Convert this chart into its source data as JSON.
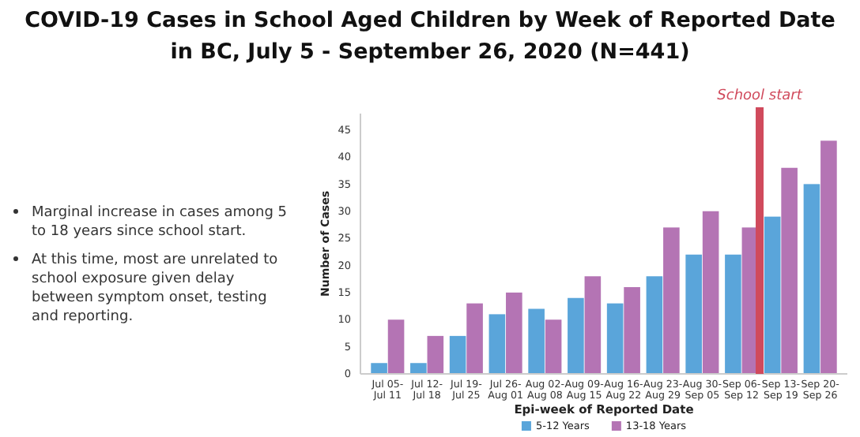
{
  "chart_data": {
    "type": "bar",
    "title": "COVID-19 Cases in School Aged Children by Week of Reported Date in BC, July 5 - September 26, 2020 (N=441)",
    "xlabel": "Epi-week of Reported Date",
    "ylabel": "Number of Cases",
    "categories": [
      "Jul 05- Jul 11",
      "Jul 12- Jul 18",
      "Jul 19- Jul 25",
      "Jul 26- Aug 01",
      "Aug 02- Aug 08",
      "Aug 09- Aug 15",
      "Aug 16- Aug 22",
      "Aug 23- Aug 29",
      "Aug 30- Sep 05",
      "Sep 06- Sep 12",
      "Sep 13- Sep 19",
      "Sep 20- Sep 26"
    ],
    "series": [
      {
        "name": "5-12 Years",
        "color": "#5aa5da",
        "values": [
          2,
          2,
          7,
          11,
          12,
          14,
          13,
          18,
          22,
          22,
          29,
          35
        ]
      },
      {
        "name": "13-18 Years",
        "color": "#b474b4",
        "values": [
          10,
          7,
          13,
          15,
          10,
          18,
          16,
          27,
          30,
          27,
          38,
          43
        ]
      }
    ],
    "ylim": [
      0,
      48
    ],
    "yticks": [
      0,
      5,
      10,
      15,
      20,
      25,
      30,
      35,
      40,
      45
    ],
    "grid": false,
    "legend": "bottom",
    "ref_lines": [
      {
        "axis": "x",
        "value": "Sep 13- Sep 19",
        "label": "School start",
        "color": "#d04a5c"
      }
    ],
    "annotations": [
      "Marginal increase in cases among 5 to 18 years since school start.",
      "At this time, most are unrelated to school exposure given delay between symptom onset, testing and reporting."
    ]
  }
}
